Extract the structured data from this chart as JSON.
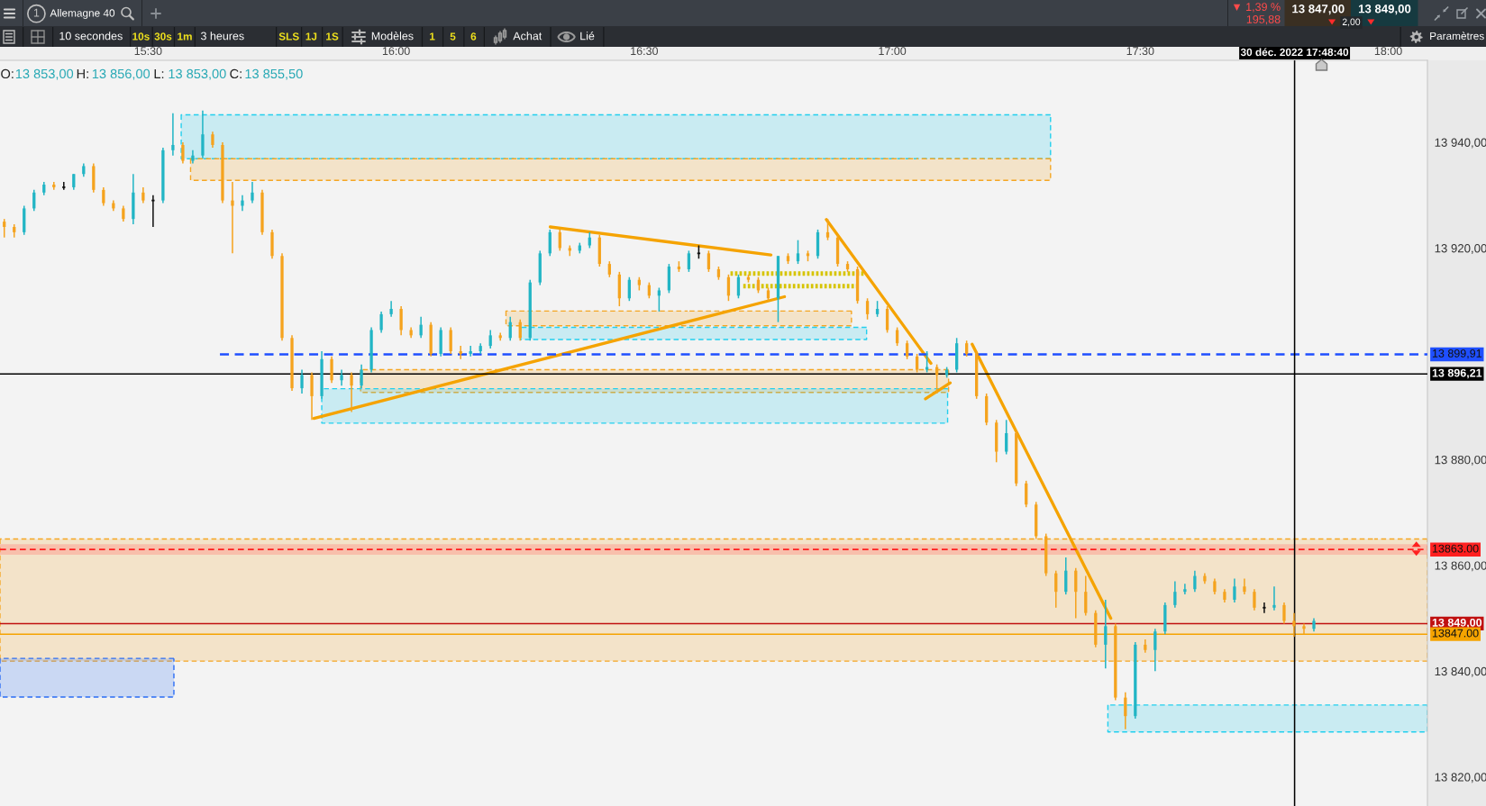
{
  "chart_data": {
    "type": "candlestick",
    "title": "Allemagne 40",
    "x": [
      "2022-12-30T15:12:36",
      "2022-12-30T15:13:48",
      "2022-12-30T15:15:00",
      "2022-12-30T15:16:12",
      "2022-12-30T15:17:24",
      "2022-12-30T15:18:36",
      "2022-12-30T15:19:48",
      "2022-12-30T15:21:00",
      "2022-12-30T15:22:12",
      "2022-12-30T15:23:24",
      "2022-12-30T15:24:36",
      "2022-12-30T15:25:48",
      "2022-12-30T15:27:00",
      "2022-12-30T15:28:12",
      "2022-12-30T15:29:24",
      "2022-12-30T15:30:36",
      "2022-12-30T15:31:48",
      "2022-12-30T15:33:00",
      "2022-12-30T15:34:12",
      "2022-12-30T15:35:24",
      "2022-12-30T15:36:36",
      "2022-12-30T15:37:48",
      "2022-12-30T15:39:00",
      "2022-12-30T15:40:12",
      "2022-12-30T15:41:24",
      "2022-12-30T15:42:36",
      "2022-12-30T15:43:48",
      "2022-12-30T15:45:00",
      "2022-12-30T15:46:12",
      "2022-12-30T15:47:24",
      "2022-12-30T15:48:36",
      "2022-12-30T15:49:48",
      "2022-12-30T15:51:00",
      "2022-12-30T15:52:12",
      "2022-12-30T15:53:24",
      "2022-12-30T15:54:36",
      "2022-12-30T15:55:48",
      "2022-12-30T15:57:00",
      "2022-12-30T15:58:12",
      "2022-12-30T15:59:24",
      "2022-12-30T16:00:36",
      "2022-12-30T16:01:48",
      "2022-12-30T16:03:00",
      "2022-12-30T16:04:12",
      "2022-12-30T16:05:24",
      "2022-12-30T16:06:36",
      "2022-12-30T16:07:48",
      "2022-12-30T16:09:00",
      "2022-12-30T16:10:12",
      "2022-12-30T16:11:24",
      "2022-12-30T16:12:36",
      "2022-12-30T16:13:48",
      "2022-12-30T16:15:00",
      "2022-12-30T16:16:12",
      "2022-12-30T16:17:24",
      "2022-12-30T16:18:36",
      "2022-12-30T16:19:48",
      "2022-12-30T16:21:00",
      "2022-12-30T16:22:12",
      "2022-12-30T16:23:24",
      "2022-12-30T16:24:36",
      "2022-12-30T16:25:48",
      "2022-12-30T16:27:00",
      "2022-12-30T16:28:12",
      "2022-12-30T16:29:24",
      "2022-12-30T16:30:36",
      "2022-12-30T16:31:48",
      "2022-12-30T16:33:00",
      "2022-12-30T16:34:12",
      "2022-12-30T16:35:24",
      "2022-12-30T16:36:36",
      "2022-12-30T16:37:48",
      "2022-12-30T16:39:00",
      "2022-12-30T16:40:12",
      "2022-12-30T16:41:24",
      "2022-12-30T16:42:36",
      "2022-12-30T16:43:48",
      "2022-12-30T16:45:00",
      "2022-12-30T16:46:12",
      "2022-12-30T16:47:24",
      "2022-12-30T16:48:36",
      "2022-12-30T16:49:48",
      "2022-12-30T16:51:00",
      "2022-12-30T16:52:12",
      "2022-12-30T16:53:24",
      "2022-12-30T16:54:36",
      "2022-12-30T16:55:48",
      "2022-12-30T16:57:00",
      "2022-12-30T16:58:12",
      "2022-12-30T16:59:24",
      "2022-12-30T17:00:36",
      "2022-12-30T17:01:48",
      "2022-12-30T17:03:00",
      "2022-12-30T17:04:12",
      "2022-12-30T17:05:24",
      "2022-12-30T17:06:36",
      "2022-12-30T17:07:48",
      "2022-12-30T17:09:00",
      "2022-12-30T17:10:12",
      "2022-12-30T17:11:24",
      "2022-12-30T17:12:36",
      "2022-12-30T17:13:48",
      "2022-12-30T17:15:00",
      "2022-12-30T17:16:12",
      "2022-12-30T17:17:24",
      "2022-12-30T17:18:36",
      "2022-12-30T17:19:48",
      "2022-12-30T17:21:00",
      "2022-12-30T17:22:12",
      "2022-12-30T17:23:24",
      "2022-12-30T17:24:36",
      "2022-12-30T17:25:48",
      "2022-12-30T17:27:00",
      "2022-12-30T17:28:12",
      "2022-12-30T17:29:24",
      "2022-12-30T17:30:36",
      "2022-12-30T17:31:48",
      "2022-12-30T17:33:00",
      "2022-12-30T17:34:12",
      "2022-12-30T17:35:24",
      "2022-12-30T17:36:36",
      "2022-12-30T17:37:48",
      "2022-12-30T17:39:00",
      "2022-12-30T17:40:12",
      "2022-12-30T17:41:24",
      "2022-12-30T17:42:36",
      "2022-12-30T17:43:48",
      "2022-12-30T17:45:00",
      "2022-12-30T17:46:12",
      "2022-12-30T17:47:24",
      "2022-12-30T17:48:36",
      "2022-12-30T17:49:48",
      "2022-12-30T17:51:00"
    ],
    "ohlc": [
      [
        13925,
        13925.5,
        13922,
        13924
      ],
      [
        13924,
        13924.5,
        13922,
        13923
      ],
      [
        13923,
        13928,
        13922.5,
        13927.5
      ],
      [
        13927.5,
        13931,
        13927,
        13930.5
      ],
      [
        13930.5,
        13932.5,
        13930,
        13932
      ],
      [
        13932,
        13932.5,
        13931,
        13931.5
      ],
      [
        13931.5,
        13932.5,
        13931,
        13931.5
      ],
      [
        13931.5,
        13934,
        13931,
        13934
      ],
      [
        13934,
        13936,
        13933.5,
        13935.5
      ],
      [
        13935.5,
        13936,
        13930.5,
        13931
      ],
      [
        13931,
        13931.5,
        13928,
        13928.5
      ],
      [
        13928.5,
        13929,
        13927,
        13927.5
      ],
      [
        13927.5,
        13928,
        13925,
        13925.5
      ],
      [
        13925.5,
        13934,
        13924.5,
        13930.5
      ],
      [
        13930.5,
        13931.5,
        13928.5,
        13929
      ],
      [
        13929,
        13930,
        13924,
        13929
      ],
      [
        13929,
        13939,
        13928.5,
        13938.5
      ],
      [
        13938.5,
        13945.5,
        13937.5,
        13939.5
      ],
      [
        13939.5,
        13940,
        13936,
        13936.5
      ],
      [
        13936.5,
        13938.5,
        13936,
        13937.5
      ],
      [
        13937.5,
        13946,
        13937,
        13941.5
      ],
      [
        13941.5,
        13942,
        13939,
        13939.5
      ],
      [
        13939.5,
        13940,
        13928.5,
        13929
      ],
      [
        13929,
        13932.5,
        13919,
        13928
      ],
      [
        13928,
        13930,
        13927,
        13929
      ],
      [
        13929,
        13932.5,
        13928.5,
        13930.5
      ],
      [
        13930.5,
        13931,
        13922.5,
        13923
      ],
      [
        13923,
        13923.5,
        13918,
        13918.5
      ],
      [
        13918.5,
        13919,
        13902.5,
        13903
      ],
      [
        13903,
        13903.5,
        13893,
        13893.5
      ],
      [
        13893.5,
        13897,
        13892.5,
        13896
      ],
      [
        13896,
        13896.5,
        13887.5,
        13892
      ],
      [
        13892,
        13900.5,
        13891.5,
        13899
      ],
      [
        13899,
        13899.5,
        13894.5,
        13895
      ],
      [
        13895,
        13897,
        13894,
        13896
      ],
      [
        13896,
        13896.5,
        13889,
        13894
      ],
      [
        13894,
        13898,
        13893.5,
        13897
      ],
      [
        13897,
        13905,
        13896.5,
        13904.5
      ],
      [
        13904.5,
        13908,
        13904,
        13907.5
      ],
      [
        13907.5,
        13910,
        13907,
        13908.5
      ],
      [
        13908.5,
        13909,
        13903.5,
        13904.5
      ],
      [
        13904.5,
        13905,
        13903,
        13903.5
      ],
      [
        13903.5,
        13907,
        13903,
        13905.5
      ],
      [
        13905.5,
        13906,
        13899.5,
        13900
      ],
      [
        13900,
        13905,
        13899.5,
        13904.5
      ],
      [
        13904.5,
        13905,
        13900,
        13900.5
      ],
      [
        13900.5,
        13901.5,
        13899,
        13900
      ],
      [
        13900,
        13901.5,
        13899.5,
        13900.5
      ],
      [
        13900.5,
        13902,
        13900,
        13901.5
      ],
      [
        13901.5,
        13904.5,
        13901,
        13903.5
      ],
      [
        13903.5,
        13904,
        13902.5,
        13903
      ],
      [
        13903,
        13907,
        13902.5,
        13906
      ],
      [
        13906,
        13906.5,
        13902.5,
        13903
      ],
      [
        13903,
        13914,
        13902.5,
        13913.5
      ],
      [
        13913.5,
        13919.5,
        13913,
        13919
      ],
      [
        13919,
        13923.5,
        13918.5,
        13923
      ],
      [
        13923,
        13923.5,
        13919.5,
        13920
      ],
      [
        13920,
        13920.5,
        13918.5,
        13919.5
      ],
      [
        13919.5,
        13921,
        13919,
        13920.5
      ],
      [
        13920.5,
        13923,
        13920,
        13922
      ],
      [
        13922,
        13922.5,
        13916.5,
        13917
      ],
      [
        13917,
        13917.5,
        13914.5,
        13915
      ],
      [
        13915,
        13915.5,
        13909,
        13910.5
      ],
      [
        13910.5,
        13914.5,
        13910,
        13914
      ],
      [
        13914,
        13914.5,
        13912,
        13913
      ],
      [
        13913,
        13913.5,
        13910.5,
        13911
      ],
      [
        13911,
        13912.5,
        13908,
        13912
      ],
      [
        13912,
        13917,
        13911.5,
        13916.5
      ],
      [
        13916.5,
        13917.5,
        13915.5,
        13916
      ],
      [
        13916,
        13919.5,
        13915.5,
        13919
      ],
      [
        13919,
        13920.5,
        13918,
        13919
      ],
      [
        13919,
        13919.5,
        13915.5,
        13916
      ],
      [
        13916,
        13916.5,
        13914,
        13914.5
      ],
      [
        13914.5,
        13915,
        13910,
        13911
      ],
      [
        13911,
        13915,
        13910.5,
        13914.5
      ],
      [
        13914.5,
        13915,
        13913.5,
        13914
      ],
      [
        13914,
        13914.5,
        13911.5,
        13912
      ],
      [
        13912,
        13912.5,
        13910,
        13910.5
      ],
      [
        13910.5,
        13918.5,
        13906,
        13918.5
      ],
      [
        13918.5,
        13919,
        13917,
        13917.5
      ],
      [
        13917.5,
        13921.5,
        13917,
        13919
      ],
      [
        13919,
        13919.5,
        13917.5,
        13918.5
      ],
      [
        13918.5,
        13923.5,
        13918,
        13923
      ],
      [
        13923,
        13925.5,
        13921.5,
        13922
      ],
      [
        13922,
        13922.5,
        13916.5,
        13917
      ],
      [
        13917,
        13917.5,
        13915.5,
        13916
      ],
      [
        13916,
        13916.5,
        13909.5,
        13910
      ],
      [
        13910,
        13910.5,
        13906.5,
        13907.5
      ],
      [
        13907.5,
        13910,
        13907,
        13908.5
      ],
      [
        13908.5,
        13909,
        13904,
        13904.5
      ],
      [
        13904.5,
        13905,
        13901.5,
        13902
      ],
      [
        13902,
        13902.5,
        13899,
        13899.5
      ],
      [
        13899.5,
        13900,
        13896.5,
        13897
      ],
      [
        13897,
        13900.5,
        13896.5,
        13897.5
      ],
      [
        13897.5,
        13898,
        13892.5,
        13896
      ],
      [
        13896,
        13897.5,
        13895.5,
        13897
      ],
      [
        13897,
        13903,
        13896.5,
        13902
      ],
      [
        13902,
        13902.5,
        13899.5,
        13900
      ],
      [
        13900,
        13900.5,
        13891.5,
        13892
      ],
      [
        13892,
        13892.5,
        13886.5,
        13887
      ],
      [
        13887,
        13887.5,
        13879.5,
        13881.5
      ],
      [
        13881.5,
        13887.5,
        13881,
        13885
      ],
      [
        13885,
        13885.5,
        13875,
        13875.5
      ],
      [
        13875.5,
        13876,
        13871,
        13871.5
      ],
      [
        13871.5,
        13872,
        13865,
        13865.5
      ],
      [
        13865.5,
        13866,
        13858,
        13858.5
      ],
      [
        13858.5,
        13859,
        13852,
        13855
      ],
      [
        13855,
        13861.5,
        13854.5,
        13859
      ],
      [
        13859,
        13859.5,
        13850,
        13855
      ],
      [
        13855,
        13858,
        13850.5,
        13851
      ],
      [
        13851,
        13851.5,
        13844.5,
        13845
      ],
      [
        13845,
        13853.5,
        13840.5,
        13848.5
      ],
      [
        13848.5,
        13849,
        13834.5,
        13835
      ],
      [
        13835,
        13836,
        13829,
        13831.5
      ],
      [
        13831.5,
        13845.5,
        13831,
        13845
      ],
      [
        13845,
        13846,
        13843.5,
        13844
      ],
      [
        13844,
        13848,
        13840,
        13847.5
      ],
      [
        13847.5,
        13853,
        13847,
        13852.5
      ],
      [
        13852.5,
        13857,
        13852,
        13855
      ],
      [
        13855,
        13856.5,
        13854.5,
        13855.5
      ],
      [
        13855.5,
        13859,
        13855,
        13858
      ],
      [
        13858,
        13858.5,
        13856.5,
        13857
      ],
      [
        13857,
        13857.5,
        13854.5,
        13855
      ],
      [
        13855,
        13855.5,
        13853,
        13853.5
      ],
      [
        13853.5,
        13857.5,
        13853,
        13856
      ],
      [
        13856,
        13857.5,
        13854.5,
        13855
      ],
      [
        13855,
        13855.5,
        13851.5,
        13852
      ],
      [
        13852,
        13853,
        13851,
        13852
      ],
      [
        13852,
        13856,
        13851.5,
        13852.5
      ],
      [
        13852.5,
        13853,
        13849,
        13849.5
      ],
      [
        13849.5,
        13851,
        13846.5,
        13848.5
      ],
      [
        13848.5,
        13849,
        13847,
        13848
      ],
      [
        13848,
        13850,
        13847.5,
        13849.5
      ]
    ],
    "colors": [
      "#f5a31e",
      "#f5a31e",
      "#22b5c5",
      "#22b5c5",
      "#22b5c5",
      "#f5a31e",
      "#111111",
      "#22b5c5",
      "#22b5c5",
      "#f5a31e",
      "#f5a31e",
      "#f5a31e",
      "#f5a31e",
      "#22b5c5",
      "#f5a31e",
      "#111111",
      "#22b5c5",
      "#22b5c5",
      "#f5a31e",
      "#22b5c5",
      "#22b5c5",
      "#f5a31e",
      "#f5a31e",
      "#f5a31e",
      "#22b5c5",
      "#22b5c5",
      "#f5a31e",
      "#f5a31e",
      "#f5a31e",
      "#f5a31e",
      "#22b5c5",
      "#f5a31e",
      "#22b5c5",
      "#f5a31e",
      "#22b5c5",
      "#f5a31e",
      "#22b5c5",
      "#22b5c5",
      "#22b5c5",
      "#22b5c5",
      "#f5a31e",
      "#f5a31e",
      "#22b5c5",
      "#f5a31e",
      "#22b5c5",
      "#f5a31e",
      "#f5a31e",
      "#22b5c5",
      "#22b5c5",
      "#22b5c5",
      "#f5a31e",
      "#22b5c5",
      "#f5a31e",
      "#22b5c5",
      "#22b5c5",
      "#22b5c5",
      "#f5a31e",
      "#f5a31e",
      "#22b5c5",
      "#22b5c5",
      "#f5a31e",
      "#f5a31e",
      "#f5a31e",
      "#22b5c5",
      "#f5a31e",
      "#f5a31e",
      "#22b5c5",
      "#22b5c5",
      "#f5a31e",
      "#22b5c5",
      "#111111",
      "#f5a31e",
      "#f5a31e",
      "#f5a31e",
      "#22b5c5",
      "#f5a31e",
      "#f5a31e",
      "#f5a31e",
      "#22b5c5",
      "#f5a31e",
      "#22b5c5",
      "#f5a31e",
      "#22b5c5",
      "#f5a31e",
      "#f5a31e",
      "#f5a31e",
      "#f5a31e",
      "#f5a31e",
      "#22b5c5",
      "#f5a31e",
      "#f5a31e",
      "#f5a31e",
      "#f5a31e",
      "#22b5c5",
      "#f5a31e",
      "#22b5c5",
      "#22b5c5",
      "#f5a31e",
      "#f5a31e",
      "#f5a31e",
      "#f5a31e",
      "#22b5c5",
      "#f5a31e",
      "#f5a31e",
      "#f5a31e",
      "#f5a31e",
      "#f5a31e",
      "#22b5c5",
      "#f5a31e",
      "#f5a31e",
      "#f5a31e",
      "#22b5c5",
      "#f5a31e",
      "#f5a31e",
      "#22b5c5",
      "#f5a31e",
      "#22b5c5",
      "#22b5c5",
      "#22b5c5",
      "#22b5c5",
      "#22b5c5",
      "#f5a31e",
      "#f5a31e",
      "#f5a31e",
      "#22b5c5",
      "#f5a31e",
      "#f5a31e",
      "#111111",
      "#22b5c5",
      "#f5a31e",
      "#f5a31e",
      "#f5a31e",
      "#22b5c5"
    ],
    "series": [
      {
        "type": "line",
        "x": [
          "2022-12-30T15:12:05",
          "2022-12-30T18:04:44"
        ],
        "values": [
          null,
          null
        ],
        "lower": [
          13841.9,
          13841.9
        ],
        "upper": [
          13865.0,
          13865.0
        ],
        "color": "#f5a623",
        "line_style": "dashed"
      },
      {
        "type": "line",
        "x": [
          "2022-12-30T15:34:00",
          "2022-12-30T17:19:09"
        ],
        "values": [
          null,
          null
        ],
        "lower": [
          13936.9,
          13936.9
        ],
        "upper": [
          13945.2,
          13945.2
        ],
        "color": "#22cfee",
        "line_style": "dashed"
      },
      {
        "type": "line",
        "x": [
          "2022-12-30T15:35:08",
          "2022-12-30T17:19:09"
        ],
        "values": [
          null,
          null
        ],
        "lower": [
          13932.8,
          13932.8
        ],
        "upper": [
          13936.9,
          13936.9
        ],
        "color": "#f5a623",
        "line_style": "dashed"
      },
      {
        "type": "line",
        "x": [
          "2022-12-30T16:13:17",
          "2022-12-30T16:55:04"
        ],
        "values": [
          null,
          null
        ],
        "lower": [
          13905.3,
          13905.3
        ],
        "upper": [
          13908.1,
          13908.1
        ],
        "color": "#f5a623",
        "line_style": "dashed"
      },
      {
        "type": "line",
        "x": [
          "2022-12-30T16:15:03",
          "2022-12-30T16:56:54"
        ],
        "values": [
          null,
          null
        ],
        "lower": [
          13902.7,
          13902.7
        ],
        "upper": [
          13905.0,
          13905.0
        ],
        "color": "#22cfee",
        "line_style": "dashed"
      },
      {
        "type": "line",
        "x": [
          "2022-12-30T15:55:42",
          "2022-12-30T17:06:49"
        ],
        "values": [
          null,
          null
        ],
        "lower": [
          13892.7,
          13892.7
        ],
        "upper": [
          13897.0,
          13897.0
        ],
        "color": "#f5a623",
        "line_style": "dashed"
      },
      {
        "type": "line",
        "x": [
          "2022-12-30T15:51:00",
          "2022-12-30T17:06:42"
        ],
        "values": [
          null,
          null
        ],
        "lower": [
          13886.9,
          13886.9
        ],
        "upper": [
          13893.4,
          13893.4
        ],
        "color": "#22cfee",
        "line_style": "dashed"
      },
      {
        "type": "line",
        "x": [
          "2022-12-30T15:12:05",
          "2022-12-30T15:33:07"
        ],
        "values": [
          null,
          null
        ],
        "lower": [
          13835.1,
          13835.1
        ],
        "upper": [
          13842.4,
          13842.4
        ],
        "color": "#2a6cf5",
        "line_style": "dashed"
      },
      {
        "type": "line",
        "x": [
          "2022-12-30T17:26:05",
          "2022-12-30T18:04:44"
        ],
        "values": [
          null,
          null
        ],
        "lower": [
          13828.5,
          13828.5
        ],
        "upper": [
          13833.6,
          13833.6
        ],
        "color": "#22cfee",
        "line_style": "dashed"
      },
      {
        "type": "line",
        "x": [
          "2022-12-30T16:40:26",
          "2022-12-30T16:56:42"
        ],
        "values": [
          13915.2,
          13915.2
        ],
        "color": "#d6c400",
        "line_style": "dotted"
      },
      {
        "type": "line",
        "x": [
          "2022-12-30T16:41:59",
          "2022-12-30T16:56:02"
        ],
        "values": [
          13912.8,
          13912.8
        ],
        "color": "#d6c400",
        "line_style": "dotted"
      },
      {
        "type": "line",
        "x": [
          "2022-12-30T15:50:03",
          "2022-12-30T16:46:58"
        ],
        "values": [
          13887.8,
          13910.8
        ],
        "color": "#f5a300"
      },
      {
        "type": "line",
        "x": [
          "2022-12-30T16:18:38",
          "2022-12-30T16:45:20"
        ],
        "values": [
          13924.0,
          13918.7
        ],
        "color": "#f5a300"
      },
      {
        "type": "line",
        "x": [
          "2022-12-30T16:52:02",
          "2022-12-30T17:04:41"
        ],
        "values": [
          13925.4,
          13898.2
        ],
        "color": "#f5a300"
      },
      {
        "type": "line",
        "x": [
          "2022-12-30T17:04:01",
          "2022-12-30T17:07:01"
        ],
        "values": [
          13891.5,
          13894.5
        ],
        "color": "#f5a300"
      },
      {
        "type": "line",
        "x": [
          "2022-12-30T17:09:40",
          "2022-12-30T17:26:26"
        ],
        "values": [
          13901.8,
          13850.0
        ],
        "color": "#f5a300"
      },
      {
        "type": "line",
        "x": [
          "2022-12-30T15:38:41",
          "2022-12-30T18:04:44"
        ],
        "values": [
          13899.91,
          13899.91
        ],
        "color": "#1f4fff",
        "line_style": "dashed",
        "value_labels": [
          null,
          "13 899,91"
        ]
      }
    ],
    "bands": [
      {
        "axis": "y",
        "from": 13862,
        "to": 13864,
        "color": "#ff8a80"
      }
    ],
    "ref_lines": [
      {
        "axis": "y",
        "value": 13863,
        "label": "13863.00",
        "color": "#ff2020",
        "line_style": "dashed"
      },
      {
        "axis": "y",
        "value": 13849,
        "label": "13 849,00",
        "color": "#c01010"
      },
      {
        "axis": "y",
        "value": 13847,
        "label": "13847.00",
        "color": "#f5a300"
      },
      {
        "axis": "y",
        "value": 13896.21,
        "label": "13 896,21",
        "color": "#000000"
      },
      {
        "axis": "x",
        "value": "2022-12-30T17:48:40",
        "label": "30 déc. 2022 17:48:40",
        "color": "#000000"
      }
    ],
    "xlim": [
      "2022-12-30T15:12:05",
      "2022-12-30T18:04:44"
    ],
    "xticks": [
      {
        "value": "2022-12-30T15:30",
        "label": "15:30"
      },
      {
        "value": "2022-12-30T16:00",
        "label": "16:00"
      },
      {
        "value": "2022-12-30T16:30",
        "label": "16:30"
      },
      {
        "value": "2022-12-30T17:00",
        "label": "17:00"
      },
      {
        "value": "2022-12-30T17:30",
        "label": "17:30"
      },
      {
        "value": "2022-12-30T18:00",
        "label": "18:00"
      }
    ],
    "ylim": [
      13814.5,
      13955.5
    ],
    "yticks": [
      {
        "value": 13820,
        "label": "13 820,00"
      },
      {
        "value": 13840,
        "label": "13 840,00"
      },
      {
        "value": 13860,
        "label": "13 860,00"
      },
      {
        "value": 13880,
        "label": "13 880,00"
      },
      {
        "value": 13920,
        "label": "13 920,00"
      },
      {
        "value": 13940,
        "label": "13 940,00"
      }
    ],
    "annotations": [
      "1",
      "▼ 1,39 %",
      "195,88",
      "13 847,00",
      "2,00",
      "13 849,00",
      "10 secondes",
      "10s",
      "30s",
      "1m",
      "3 heures",
      "SLS",
      "1J",
      "1S",
      "Modèles",
      "1",
      "5",
      "6",
      "Achat",
      "Lié",
      "Paramètres",
      "O:",
      "13 853,00",
      "H:",
      "13 856,00",
      "L:",
      "13 853,00",
      "C:",
      "13 855,50"
    ]
  }
}
